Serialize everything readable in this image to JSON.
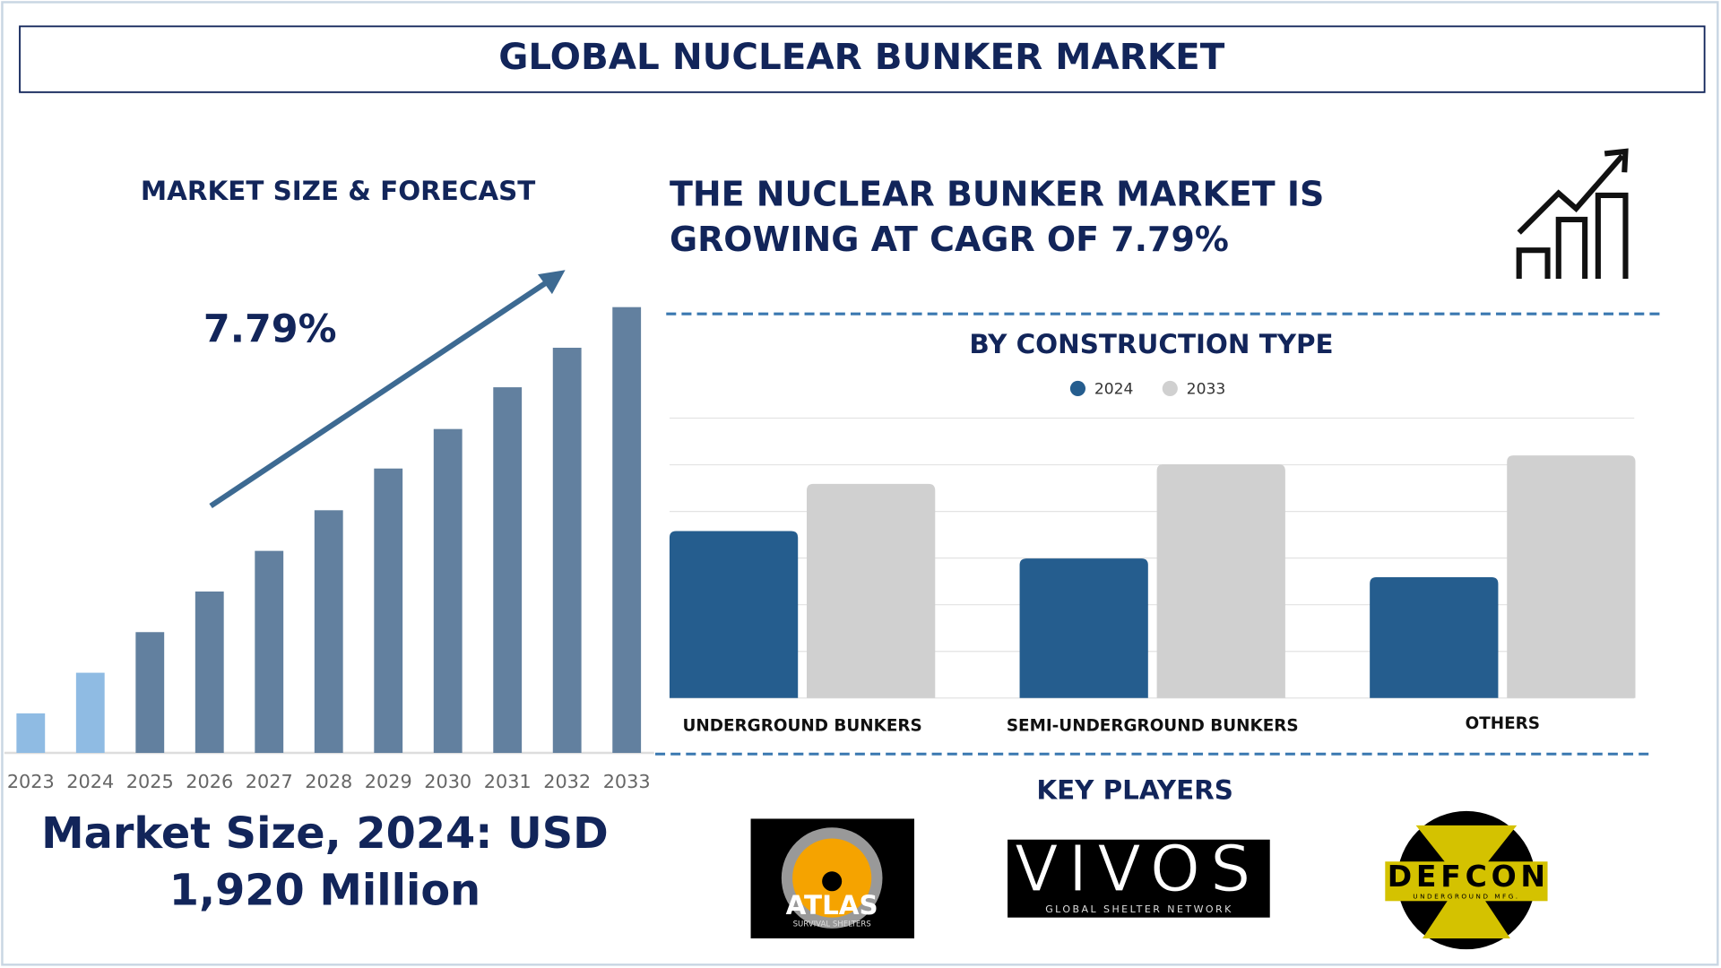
{
  "header": {
    "title": "GLOBAL NUCLEAR BUNKER MARKET"
  },
  "chart_data": [
    {
      "type": "bar",
      "title": "MARKET SIZE & FORECAST",
      "annotation": "7.79%",
      "categories": [
        "2023",
        "2024",
        "2025",
        "2026",
        "2027",
        "2028",
        "2029",
        "2030",
        "2031",
        "2032",
        "2033"
      ],
      "values": [
        947,
        1920,
        2893,
        3866,
        4839,
        5812,
        6812,
        7758,
        8758,
        9705,
        10678
      ],
      "colors": [
        "#8fbbe3",
        "#8fbbe3",
        "#62809f",
        "#62809f",
        "#62809f",
        "#62809f",
        "#62809f",
        "#62809f",
        "#62809f",
        "#62809f",
        "#62809f"
      ],
      "ylim": [
        0,
        10700
      ]
    },
    {
      "type": "grouped_bar",
      "title": "BY CONSTRUCTION TYPE",
      "categories": [
        "UNDERGROUND BUNKERS",
        "SEMI-UNDERGROUND BUNKERS",
        "OTHERS"
      ],
      "series": [
        {
          "name": "2024",
          "color": "#255d8e",
          "values": [
            3.58,
            2.99,
            2.59
          ]
        },
        {
          "name": "2033",
          "color": "#d0d0d0",
          "values": [
            4.59,
            5.01,
            5.2
          ]
        }
      ],
      "ylim": [
        0,
        6
      ],
      "yticks": [
        0,
        1,
        2,
        3,
        4,
        5,
        6
      ],
      "grid": true
    }
  ],
  "headline": [
    "THE NUCLEAR BUNKER MARKET IS",
    "GROWING AT CAGR OF 7.79%"
  ],
  "market_size": [
    "Market Size, 2024: USD",
    "1,920 Million"
  ],
  "key_players": {
    "title": "KEY PLAYERS",
    "logos": [
      {
        "name": "ATLAS",
        "tagline": "SURVIVAL SHELTERS"
      },
      {
        "name": "VIVOS",
        "tagline": "GLOBAL SHELTER NETWORK"
      },
      {
        "name": "DEFCON",
        "tagline": "UNDERGROUND MFG."
      }
    ]
  }
}
